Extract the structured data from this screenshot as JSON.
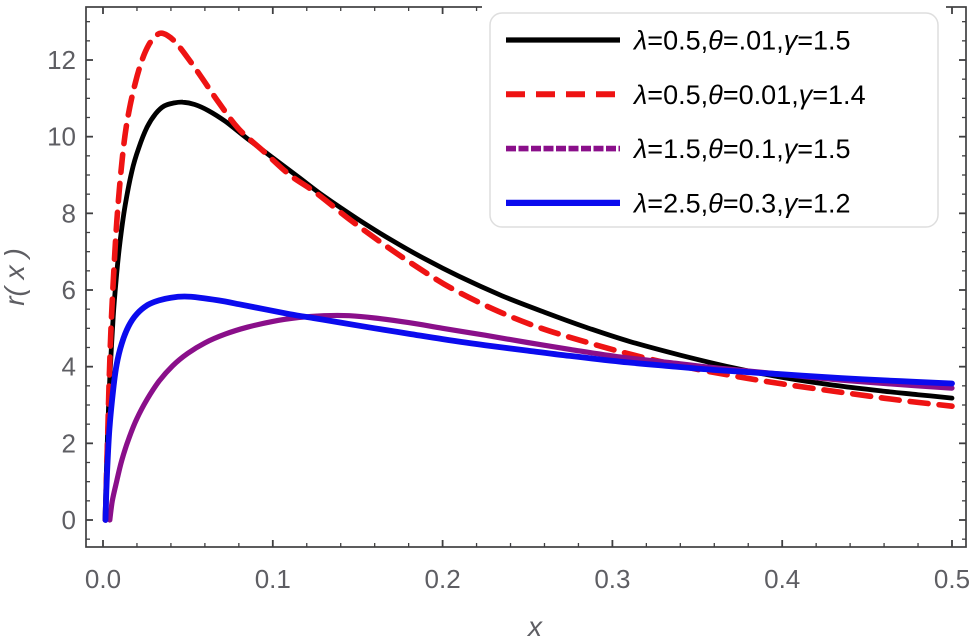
{
  "chart_data": {
    "type": "line",
    "title": "",
    "xlabel": "x",
    "ylabel": "r( x )",
    "xlim": [
      0,
      0.5
    ],
    "ylim": [
      0,
      12
    ],
    "grid": false,
    "frame": true,
    "legend_position": "top-right",
    "x_ticks": [
      {
        "value": 0.0,
        "label": "0.0"
      },
      {
        "value": 0.1,
        "label": "0.1"
      },
      {
        "value": 0.2,
        "label": "0.2"
      },
      {
        "value": 0.3,
        "label": "0.3"
      },
      {
        "value": 0.4,
        "label": "0.4"
      },
      {
        "value": 0.5,
        "label": "0.5"
      }
    ],
    "y_ticks": [
      {
        "value": 0,
        "label": "0"
      },
      {
        "value": 2,
        "label": "2"
      },
      {
        "value": 4,
        "label": "4"
      },
      {
        "value": 6,
        "label": "6"
      },
      {
        "value": 8,
        "label": "8"
      },
      {
        "value": 10,
        "label": "10"
      },
      {
        "value": 12,
        "label": "12"
      }
    ],
    "x_minor_step": 0.02,
    "y_minor_step": 0.5,
    "series": [
      {
        "name": "λ=0.5,θ=.01,γ=1.5",
        "color": "#000000",
        "dash": "solid",
        "width": 4.8,
        "peak": {
          "x": 0.047,
          "y": 10.9
        },
        "points": [
          [
            0.0012,
            0
          ],
          [
            0.0018,
            1.0
          ],
          [
            0.0028,
            2.4
          ],
          [
            0.004,
            3.7
          ],
          [
            0.006,
            5.3
          ],
          [
            0.008,
            6.4
          ],
          [
            0.01,
            7.25
          ],
          [
            0.013,
            8.2
          ],
          [
            0.017,
            9.1
          ],
          [
            0.021,
            9.7
          ],
          [
            0.026,
            10.25
          ],
          [
            0.031,
            10.6
          ],
          [
            0.036,
            10.8
          ],
          [
            0.042,
            10.88
          ],
          [
            0.047,
            10.9
          ],
          [
            0.054,
            10.84
          ],
          [
            0.062,
            10.68
          ],
          [
            0.072,
            10.4
          ],
          [
            0.085,
            9.95
          ],
          [
            0.1,
            9.45
          ],
          [
            0.115,
            8.95
          ],
          [
            0.13,
            8.45
          ],
          [
            0.15,
            7.85
          ],
          [
            0.17,
            7.3
          ],
          [
            0.19,
            6.8
          ],
          [
            0.21,
            6.35
          ],
          [
            0.235,
            5.85
          ],
          [
            0.26,
            5.42
          ],
          [
            0.285,
            5.02
          ],
          [
            0.31,
            4.66
          ],
          [
            0.34,
            4.3
          ],
          [
            0.37,
            3.98
          ],
          [
            0.4,
            3.72
          ],
          [
            0.43,
            3.52
          ],
          [
            0.46,
            3.36
          ],
          [
            0.48,
            3.27
          ],
          [
            0.5,
            3.18
          ]
        ]
      },
      {
        "name": "λ=0.5,θ=0.01,γ=1.4",
        "color": "#ee1313",
        "dash": "dashed",
        "width": 5.6,
        "peak": {
          "x": 0.034,
          "y": 12.7
        },
        "points": [
          [
            0.0015,
            0
          ],
          [
            0.002,
            1.0
          ],
          [
            0.0028,
            2.3
          ],
          [
            0.0038,
            3.9
          ],
          [
            0.005,
            5.3
          ],
          [
            0.007,
            7.0
          ],
          [
            0.009,
            8.3
          ],
          [
            0.012,
            9.7
          ],
          [
            0.015,
            10.6
          ],
          [
            0.019,
            11.4
          ],
          [
            0.023,
            12.0
          ],
          [
            0.027,
            12.4
          ],
          [
            0.031,
            12.62
          ],
          [
            0.034,
            12.7
          ],
          [
            0.038,
            12.64
          ],
          [
            0.043,
            12.45
          ],
          [
            0.05,
            12.05
          ],
          [
            0.058,
            11.55
          ],
          [
            0.068,
            10.9
          ],
          [
            0.08,
            10.2
          ],
          [
            0.095,
            9.6
          ],
          [
            0.11,
            9.0
          ],
          [
            0.125,
            8.55
          ],
          [
            0.145,
            7.85
          ],
          [
            0.165,
            7.2
          ],
          [
            0.185,
            6.6
          ],
          [
            0.205,
            6.05
          ],
          [
            0.23,
            5.5
          ],
          [
            0.255,
            5.05
          ],
          [
            0.28,
            4.7
          ],
          [
            0.31,
            4.33
          ],
          [
            0.34,
            4.02
          ],
          [
            0.37,
            3.77
          ],
          [
            0.4,
            3.55
          ],
          [
            0.44,
            3.3
          ],
          [
            0.47,
            3.12
          ],
          [
            0.5,
            2.97
          ]
        ]
      },
      {
        "name": "λ=1.5,θ=0.1,γ=1.5",
        "color": "#8a0f8a",
        "dash": "fine",
        "width": 5.2,
        "peak": {
          "x": 0.13,
          "y": 5.33
        },
        "points": [
          [
            0.004,
            0
          ],
          [
            0.0055,
            0.5
          ],
          [
            0.008,
            1.0
          ],
          [
            0.011,
            1.55
          ],
          [
            0.015,
            2.1
          ],
          [
            0.02,
            2.65
          ],
          [
            0.026,
            3.15
          ],
          [
            0.033,
            3.62
          ],
          [
            0.041,
            4.02
          ],
          [
            0.05,
            4.35
          ],
          [
            0.06,
            4.62
          ],
          [
            0.072,
            4.85
          ],
          [
            0.085,
            5.03
          ],
          [
            0.1,
            5.18
          ],
          [
            0.115,
            5.28
          ],
          [
            0.13,
            5.33
          ],
          [
            0.145,
            5.33
          ],
          [
            0.16,
            5.27
          ],
          [
            0.18,
            5.15
          ],
          [
            0.2,
            5.0
          ],
          [
            0.225,
            4.82
          ],
          [
            0.25,
            4.63
          ],
          [
            0.275,
            4.45
          ],
          [
            0.305,
            4.25
          ],
          [
            0.335,
            4.1
          ],
          [
            0.365,
            3.95
          ],
          [
            0.4,
            3.8
          ],
          [
            0.435,
            3.65
          ],
          [
            0.47,
            3.53
          ],
          [
            0.5,
            3.44
          ]
        ]
      },
      {
        "name": "λ=2.5,θ=0.3,γ=1.2",
        "color": "#0b0bee",
        "dash": "solid",
        "width": 5.8,
        "peak": {
          "x": 0.048,
          "y": 5.83
        },
        "points": [
          [
            0.0015,
            0
          ],
          [
            0.002,
            0.8
          ],
          [
            0.003,
            1.8
          ],
          [
            0.004,
            2.5
          ],
          [
            0.006,
            3.4
          ],
          [
            0.008,
            4.05
          ],
          [
            0.011,
            4.6
          ],
          [
            0.015,
            5.05
          ],
          [
            0.02,
            5.38
          ],
          [
            0.026,
            5.6
          ],
          [
            0.033,
            5.73
          ],
          [
            0.04,
            5.8
          ],
          [
            0.048,
            5.83
          ],
          [
            0.057,
            5.8
          ],
          [
            0.068,
            5.73
          ],
          [
            0.08,
            5.63
          ],
          [
            0.095,
            5.5
          ],
          [
            0.11,
            5.37
          ],
          [
            0.125,
            5.26
          ],
          [
            0.14,
            5.15
          ],
          [
            0.16,
            5.0
          ],
          [
            0.18,
            4.86
          ],
          [
            0.2,
            4.72
          ],
          [
            0.225,
            4.56
          ],
          [
            0.25,
            4.42
          ],
          [
            0.275,
            4.28
          ],
          [
            0.305,
            4.13
          ],
          [
            0.335,
            4.01
          ],
          [
            0.365,
            3.9
          ],
          [
            0.4,
            3.8
          ],
          [
            0.435,
            3.7
          ],
          [
            0.47,
            3.62
          ],
          [
            0.5,
            3.56
          ]
        ]
      }
    ],
    "colors": {
      "frame": "#3f3f41",
      "tick_text": "#5e5e63",
      "legend_border": "#dedede",
      "background": "#ffffff"
    }
  }
}
